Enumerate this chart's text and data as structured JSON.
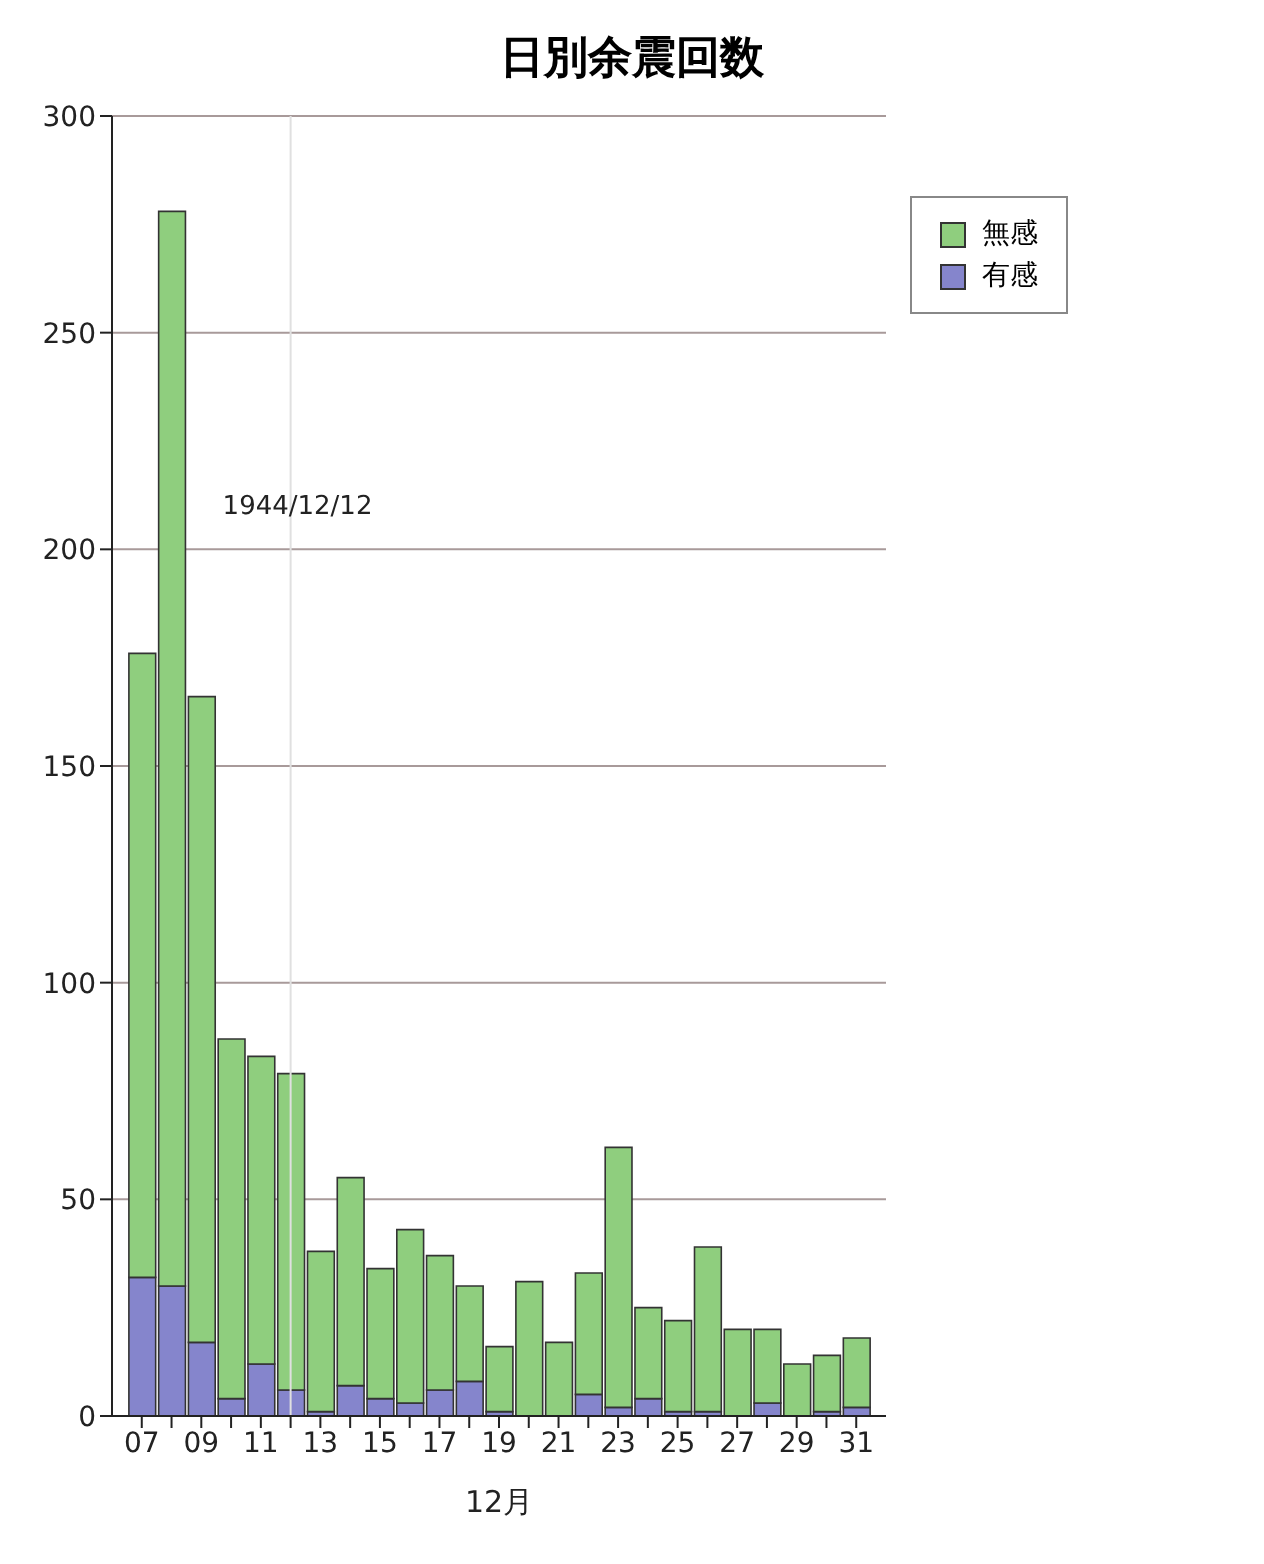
{
  "chart_data": {
    "type": "bar",
    "title": "日別余震回数",
    "xlabel": "12月",
    "stacked": true,
    "x": [
      7,
      8,
      9,
      10,
      11,
      12,
      13,
      14,
      15,
      16,
      17,
      18,
      19,
      20,
      21,
      22,
      23,
      24,
      25,
      26,
      27,
      28,
      29,
      30,
      31
    ],
    "series": [
      {
        "name": "有感",
        "color": "#8585cc",
        "values": [
          32,
          30,
          17,
          4,
          12,
          6,
          1,
          7,
          4,
          3,
          6,
          8,
          1,
          0,
          0,
          5,
          2,
          4,
          1,
          1,
          0,
          3,
          0,
          1,
          2
        ]
      },
      {
        "name": "無感",
        "color": "#8fce7e",
        "values": [
          144,
          248,
          149,
          83,
          71,
          73,
          37,
          48,
          30,
          40,
          31,
          22,
          15,
          31,
          17,
          28,
          60,
          21,
          21,
          38,
          20,
          17,
          12,
          13,
          16
        ]
      }
    ],
    "xlim": [
      6,
      32
    ],
    "xticks": [
      {
        "value": 7,
        "label": "07"
      },
      {
        "value": 8,
        "label": null
      },
      {
        "value": 9,
        "label": "09"
      },
      {
        "value": 10,
        "label": null
      },
      11,
      {
        "value": 12,
        "label": null
      },
      13,
      {
        "value": 14,
        "label": null
      },
      15,
      {
        "value": 16,
        "label": null
      },
      17,
      {
        "value": 18,
        "label": null
      },
      19,
      {
        "value": 20,
        "label": null
      },
      21,
      {
        "value": 22,
        "label": null
      },
      23,
      {
        "value": 24,
        "label": null
      },
      25,
      {
        "value": 26,
        "label": null
      },
      27,
      {
        "value": 28,
        "label": null
      },
      29,
      {
        "value": 30,
        "label": null
      },
      31
    ],
    "ylim": [
      0,
      300
    ],
    "yticks": [
      0,
      50,
      100,
      150,
      200,
      250,
      300
    ],
    "grid": "y",
    "legend": "top right",
    "ref_lines": [
      {
        "axis": "x",
        "value": 12,
        "label": "1944/12/12",
        "color": "#e0e0e0"
      }
    ]
  }
}
